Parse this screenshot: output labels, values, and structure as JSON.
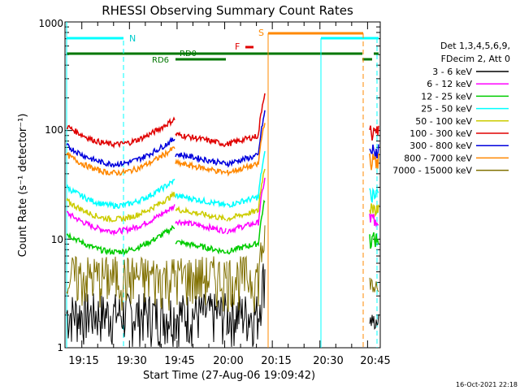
{
  "chart_data": {
    "type": "line",
    "title": "RHESSI Observing Summary Count Rates",
    "xlabel": "Start Time (27-Aug-06 19:09:42)",
    "ylabel": "Count Rate (s⁻¹ detector⁻¹)",
    "yscale": "log",
    "ylim": [
      1,
      1000
    ],
    "xlim_minutes": [
      19.16,
      20.82
    ],
    "x_ticks": [
      "19:15",
      "19:30",
      "19:45",
      "20:00",
      "20:15",
      "20:30",
      "20:45"
    ],
    "y_ticks": [
      "1",
      "10",
      "100",
      "1000"
    ],
    "footer": "16-Oct-2021 22:18",
    "legend_header": [
      "Det 1,3,4,5,6,9,",
      "FDecim 2, Att 0"
    ],
    "series": [
      {
        "name": "3 - 6 keV",
        "color": "#000000",
        "level": 1.6
      },
      {
        "name": "6 - 12 keV",
        "color": "#ff00ff",
        "level": 14
      },
      {
        "name": "12 - 25 keV",
        "color": "#00cc00",
        "level": 9
      },
      {
        "name": "25 - 50 keV",
        "color": "#00ffff",
        "level": 24
      },
      {
        "name": "50 - 100 keV",
        "color": "#cccc00",
        "level": 18
      },
      {
        "name": "100 - 300 keV",
        "color": "#e00000",
        "level": 88
      },
      {
        "name": "300 - 800 keV",
        "color": "#0000dd",
        "level": 58
      },
      {
        "name": "800 - 7000 keV",
        "color": "#ff8800",
        "level": 48
      },
      {
        "name": "7000 - 15000 keV",
        "color": "#807000",
        "level": 3.5
      }
    ],
    "annotations": {
      "N": "N",
      "S": "S",
      "F": "F",
      "RD0": "RD0",
      "RD6": "RD6"
    }
  }
}
